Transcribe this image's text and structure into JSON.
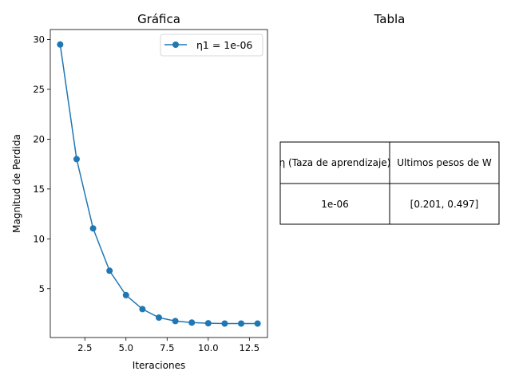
{
  "chart_data": [
    {
      "type": "line",
      "title": "Gráfica",
      "xlabel": "Iteraciones",
      "ylabel": "Magnitud de Perdida",
      "xlim": [
        0.4,
        13.6
      ],
      "ylim": [
        0.1,
        31.0
      ],
      "x_ticks": [
        2.5,
        5.0,
        7.5,
        10.0,
        12.5
      ],
      "x_tick_labels": [
        "2.5",
        "5.0",
        "7.5",
        "10.0",
        "12.5"
      ],
      "y_ticks": [
        5,
        10,
        15,
        20,
        25,
        30
      ],
      "y_tick_labels": [
        "5",
        "10",
        "15",
        "20",
        "25",
        "30"
      ],
      "grid": false,
      "legend_position": "top-right",
      "series": [
        {
          "name": "η1 = 1e-06",
          "color": "#1f77b4",
          "marker": "circle",
          "x": [
            1,
            2,
            3,
            4,
            5,
            6,
            7,
            8,
            9,
            10,
            11,
            12,
            13
          ],
          "y": [
            29.5,
            18.0,
            11.05,
            6.8,
            4.35,
            2.95,
            2.1,
            1.75,
            1.6,
            1.53,
            1.5,
            1.5,
            1.5
          ]
        }
      ]
    },
    {
      "type": "table",
      "title": "Tabla",
      "columns": [
        "η (Taza de aprendizaje)",
        "Ultimos pesos de W"
      ],
      "rows": [
        [
          "1e-06",
          "[0.201, 0.497]"
        ]
      ]
    }
  ]
}
